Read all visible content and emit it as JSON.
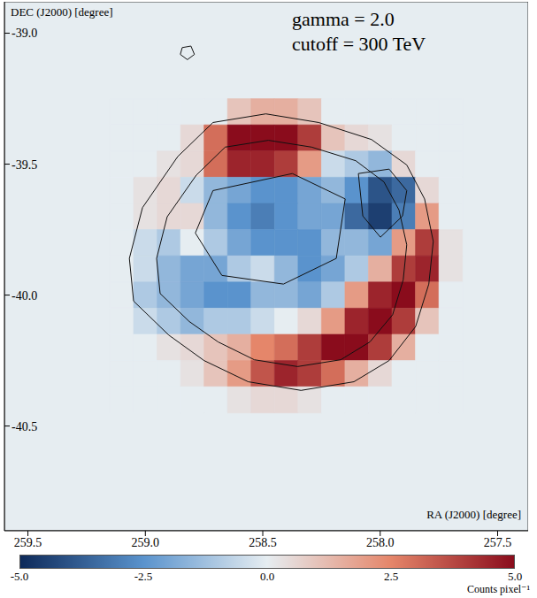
{
  "chart_data": {
    "type": "heatmap",
    "x_label": "RA (J2000) [degree]",
    "y_label": "DEC (J2000) [degree]",
    "annotations": [
      "gamma = 2.0",
      "cutoff = 300 TeV"
    ],
    "xlim": [
      259.6,
      257.37
    ],
    "ylim": [
      -40.9,
      -38.88
    ],
    "xticks": [
      259.5,
      {
        "value": 259,
        "label": "259.0"
      },
      258.5,
      {
        "value": 258,
        "label": "258.0"
      },
      257.5
    ],
    "yticks": [
      {
        "value": -39,
        "label": "-39.0"
      },
      -39.5,
      {
        "value": -40,
        "label": "-40.0"
      },
      -40.5
    ],
    "heatmap": {
      "x": [
        259.1,
        259.0,
        258.9,
        258.8,
        258.7,
        258.6,
        258.5,
        258.4,
        258.3,
        258.2,
        258.1,
        258.0,
        257.9,
        257.8,
        257.7
      ],
      "y": [
        -39.3,
        -39.4,
        -39.5,
        -39.6,
        -39.7,
        -39.8,
        -39.9,
        -40.0,
        -40.1,
        -40.2,
        -40.3,
        -40.4
      ],
      "z": [
        [
          0,
          0,
          0,
          0,
          0,
          1,
          1.5,
          1.5,
          1,
          0,
          0,
          0,
          0,
          0,
          0
        ],
        [
          0,
          0,
          0,
          0.5,
          3,
          5,
          5,
          5,
          4,
          1,
          0.5,
          0.3,
          0,
          0,
          0
        ],
        [
          0,
          0,
          0.3,
          0.5,
          3,
          4.5,
          4.5,
          4,
          2,
          -0.5,
          -1,
          -1.5,
          0.5,
          0,
          0
        ],
        [
          0,
          0.3,
          0.5,
          -0.5,
          -1.5,
          -2,
          -2.5,
          -2.5,
          -2,
          -1.5,
          -2.5,
          -4,
          -3.5,
          0.5,
          0
        ],
        [
          0,
          0.3,
          0.5,
          0.5,
          -1.5,
          -2.5,
          -3,
          -2.5,
          -2,
          -2,
          -3.5,
          -4.5,
          -3,
          2,
          0
        ],
        [
          0,
          -0.5,
          -1,
          0,
          -1,
          -2,
          -2.5,
          -2.5,
          -2.5,
          -1.5,
          -1.5,
          -2,
          2,
          4,
          0.3
        ],
        [
          0,
          -0.5,
          -1.5,
          -2,
          -2,
          -1,
          -0.5,
          -1.5,
          -2.5,
          -2,
          -1,
          1.5,
          4,
          4.5,
          0.3
        ],
        [
          0,
          -1,
          -1.5,
          -2,
          -2.5,
          -2.5,
          -1.5,
          -1.5,
          -2,
          -1,
          2,
          4.5,
          5,
          3,
          0
        ],
        [
          0,
          -0.5,
          -1,
          -1.5,
          -1,
          -1,
          -0.5,
          0,
          0.5,
          2,
          4.5,
          5,
          4,
          1,
          0
        ],
        [
          0,
          0,
          0.3,
          0.5,
          1,
          1.5,
          2.5,
          3,
          4,
          5,
          5,
          4,
          1.5,
          0,
          0
        ],
        [
          0,
          0,
          0,
          0.3,
          1,
          2,
          3.5,
          4.5,
          4,
          3,
          1.5,
          0.5,
          0,
          0,
          0
        ],
        [
          0,
          0,
          0,
          0,
          0,
          0.3,
          0.5,
          0.5,
          0.3,
          0,
          0,
          0,
          0,
          0,
          0
        ]
      ]
    },
    "colorbar": {
      "range": [
        -5,
        5
      ],
      "ticks": [
        {
          "value": -5,
          "label": "-5.0"
        },
        -2.5,
        {
          "value": 0,
          "label": "0.0"
        },
        2.5,
        {
          "value": 5,
          "label": "5.0"
        }
      ],
      "label": "Counts pixel⁻¹"
    },
    "contours": [
      [
        [
          258.712,
          -39.341
        ],
        [
          258.487,
          -39.308
        ],
        [
          258.262,
          -39.341
        ],
        [
          258.037,
          -39.406
        ],
        [
          257.887,
          -39.503
        ],
        [
          257.811,
          -39.633
        ],
        [
          257.774,
          -39.795
        ],
        [
          257.793,
          -39.958
        ],
        [
          257.849,
          -40.12
        ],
        [
          257.962,
          -40.25
        ],
        [
          258.112,
          -40.331
        ],
        [
          258.337,
          -40.364
        ],
        [
          258.562,
          -40.331
        ],
        [
          258.75,
          -40.25
        ],
        [
          258.9,
          -40.153
        ],
        [
          259.05,
          -40.023
        ],
        [
          259.068,
          -39.86
        ],
        [
          259.012,
          -39.666
        ],
        [
          258.862,
          -39.471
        ]
      ],
      [
        [
          258.66,
          -39.435
        ],
        [
          258.476,
          -39.409
        ],
        [
          258.292,
          -39.435
        ],
        [
          258.104,
          -39.487
        ],
        [
          257.984,
          -39.568
        ],
        [
          257.92,
          -39.675
        ],
        [
          257.887,
          -39.808
        ],
        [
          257.902,
          -39.942
        ],
        [
          257.947,
          -40.075
        ],
        [
          258.044,
          -40.179
        ],
        [
          258.168,
          -40.247
        ],
        [
          258.352,
          -40.273
        ],
        [
          258.536,
          -40.247
        ],
        [
          258.69,
          -40.179
        ],
        [
          258.813,
          -40.101
        ],
        [
          258.937,
          -39.994
        ],
        [
          258.952,
          -39.86
        ],
        [
          258.907,
          -39.701
        ],
        [
          258.783,
          -39.542
        ]
      ],
      [
        [
          258.093,
          -39.536
        ],
        [
          257.962,
          -39.519
        ],
        [
          257.887,
          -39.601
        ],
        [
          257.905,
          -39.698
        ],
        [
          257.999,
          -39.779
        ],
        [
          258.074,
          -39.698
        ]
      ],
      [
        [
          258.712,
          -39.601
        ],
        [
          258.374,
          -39.536
        ],
        [
          258.149,
          -39.633
        ],
        [
          258.187,
          -39.86
        ],
        [
          258.412,
          -39.958
        ],
        [
          258.674,
          -39.925
        ],
        [
          258.787,
          -39.763
        ]
      ],
      [
        [
          258.843,
          -39.055
        ],
        [
          258.806,
          -39.049
        ],
        [
          258.791,
          -39.081
        ],
        [
          258.821,
          -39.101
        ],
        [
          258.851,
          -39.081
        ]
      ]
    ]
  }
}
